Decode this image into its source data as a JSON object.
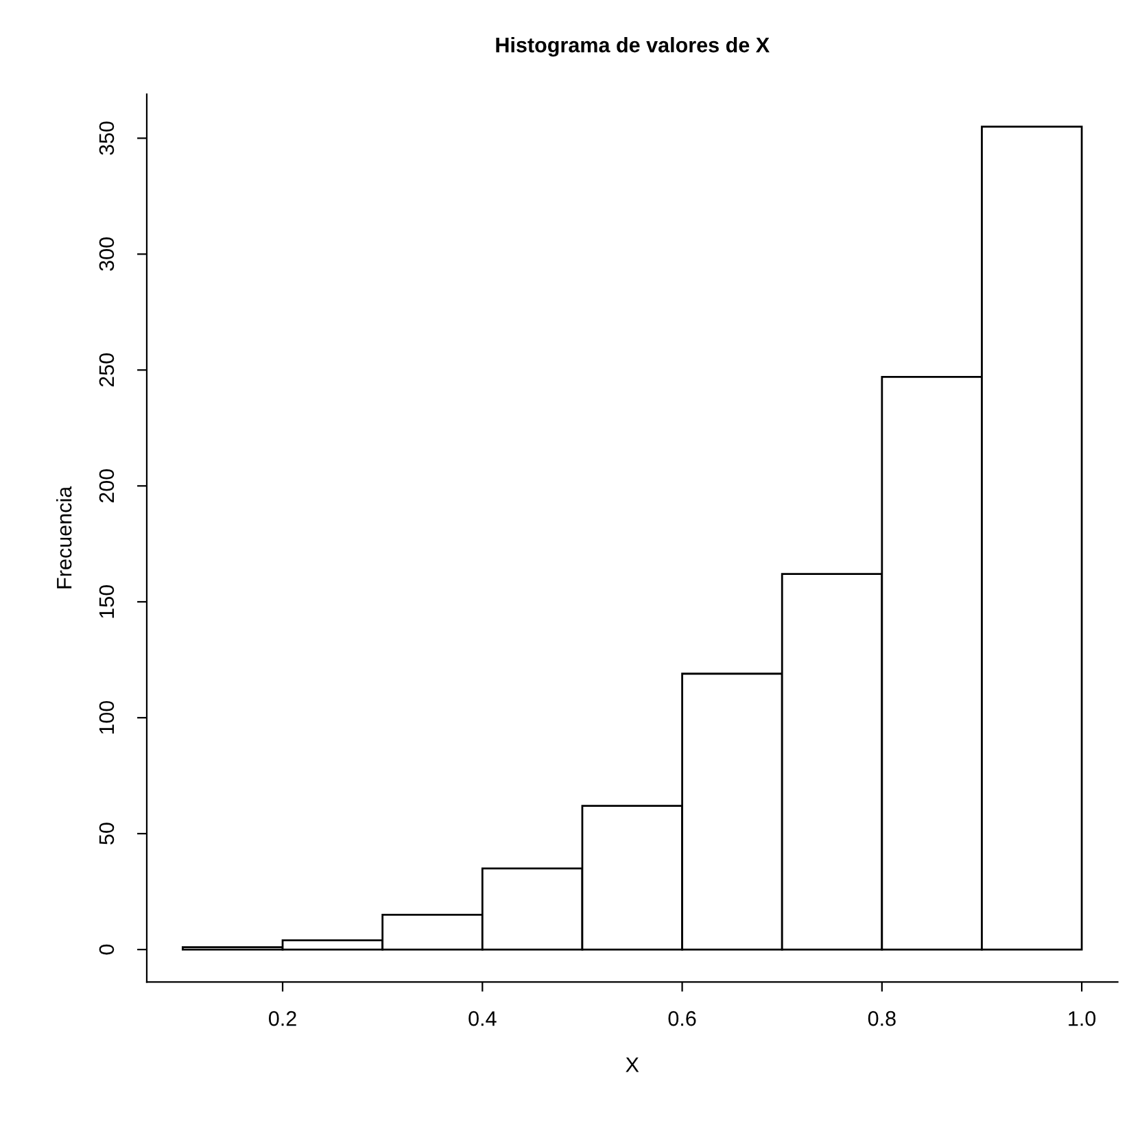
{
  "chart_data": {
    "type": "histogram",
    "title": "Histograma de valores de X",
    "xlabel": "X",
    "ylabel": "Frecuencia",
    "bins": [
      0.1,
      0.2,
      0.3,
      0.4,
      0.5,
      0.6,
      0.7,
      0.8,
      0.9,
      1.0
    ],
    "values": [
      1,
      4,
      15,
      35,
      62,
      119,
      162,
      247,
      355
    ],
    "color": "#ffffff",
    "xlim": [
      0.064,
      1.036
    ],
    "ylim": [
      -14,
      369
    ],
    "xticks": [
      0.2,
      0.4,
      0.6,
      0.8,
      {
        "value": 1.0,
        "label": "1.0"
      }
    ],
    "yticks": [
      0,
      50,
      100,
      150,
      200,
      250,
      300,
      350
    ],
    "grid": false,
    "legend": false
  }
}
